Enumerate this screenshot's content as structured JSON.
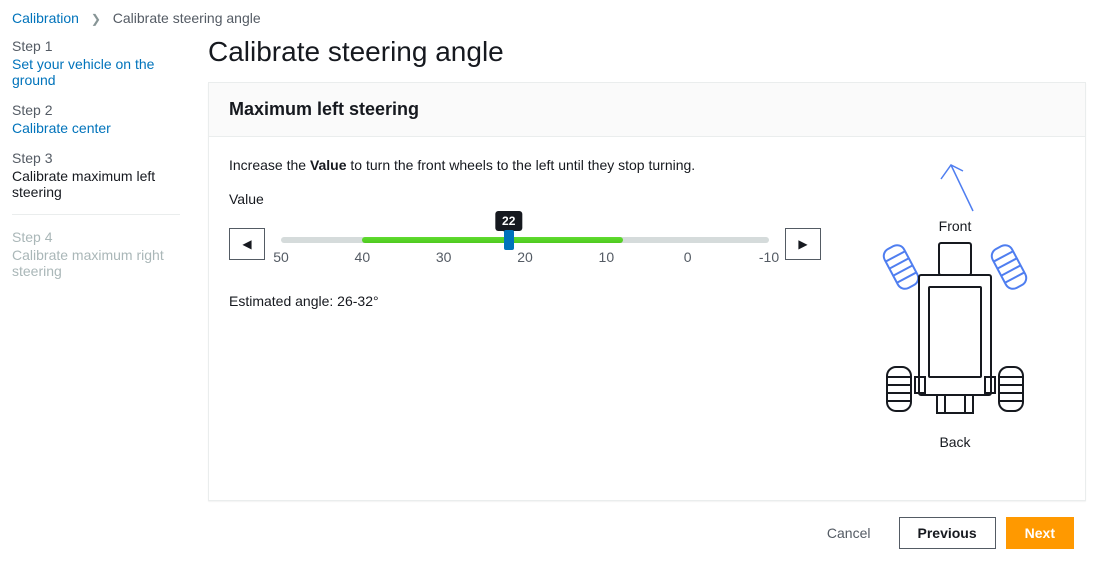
{
  "breadcrumb": {
    "root": "Calibration",
    "current": "Calibrate steering angle"
  },
  "steps": [
    {
      "num": "Step 1",
      "title": "Set your vehicle on the ground",
      "state": "link"
    },
    {
      "num": "Step 2",
      "title": "Calibrate center",
      "state": "link"
    },
    {
      "num": "Step 3",
      "title": "Calibrate maximum left steering",
      "state": "current"
    },
    {
      "num": "Step 4",
      "title": "Calibrate maximum right steering",
      "state": "future"
    }
  ],
  "page": {
    "title": "Calibrate steering angle",
    "section_title": "Maximum left steering",
    "instruction_prefix": "Increase the ",
    "instruction_bold": "Value",
    "instruction_suffix": " to turn the front wheels to the left until they stop turning.",
    "value_label": "Value",
    "estimated": "Estimated angle: 26-32°",
    "diagram": {
      "front": "Front",
      "back": "Back"
    }
  },
  "slider": {
    "value": 22,
    "min": -10,
    "max": 50,
    "ticks": [
      50,
      40,
      30,
      20,
      10,
      0,
      -10
    ],
    "fill_from": 40,
    "fill_to": 8,
    "track_color": "#d5dbdb",
    "fill_color_top": "#5fdb2f",
    "fill_color_bottom": "#4fc91f",
    "thumb_color": "#0073bb",
    "tooltip_bg": "#16191f",
    "tooltip_fg": "#ffffff"
  },
  "footer": {
    "cancel": "Cancel",
    "previous": "Previous",
    "next": "Next"
  }
}
